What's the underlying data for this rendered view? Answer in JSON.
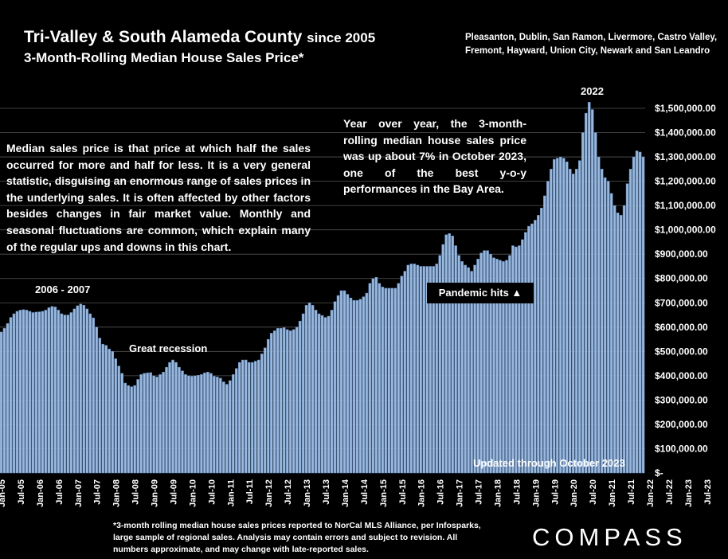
{
  "header": {
    "title": "Tri-Valley & South Alameda County",
    "title_suffix": "since 2005",
    "subtitle": "3-Month-Rolling Median House Sales Price*",
    "cities": "Pleasanton, Dublin, San Ramon, Livermore, Castro Valley, Fremont, Hayward, Union City, Newark and San Leandro"
  },
  "notes": {
    "left": "Median sales price is that price at which half the sales occurred for more and half for less. It is a very general statistic, disguising an enormous range of sales prices in the underlying sales. It is often affected by other factors besides changes in fair market value. Monthly and seasonal fluctuations are common, which explain many of the regular ups and downs in this chart.",
    "right": "Year over year, the 3-month-rolling median house sales price was up about 7% in October 2023, one of the best y-o-y performances in the Bay Area."
  },
  "annotations": {
    "label_2006": "2006 - 2007",
    "label_recession": "Great recession",
    "label_2022": "2022",
    "label_pandemic": "Pandemic hits ▲",
    "label_updated": "Updated through October 2023"
  },
  "footnote": "*3-month rolling median house sales prices reported to NorCal MLS Alliance, per Infosparks, large sample of regional sales. Analysis may contain errors and subject to revision. All numbers approximate, and may change with late-reported sales.",
  "logo": "COMPASS",
  "colors": {
    "bar": "#9ab8dd",
    "bar_edge": "#5f86b8",
    "background": "#000000",
    "grid": "#555555"
  },
  "chart_data": {
    "type": "bar",
    "ylim": [
      0,
      1500000
    ],
    "yticks": [
      0,
      100000,
      200000,
      300000,
      400000,
      500000,
      600000,
      700000,
      800000,
      900000,
      1000000,
      1100000,
      1200000,
      1300000,
      1400000,
      1500000
    ],
    "ytick_labels": [
      "$-",
      "$100,000.00",
      "$200,000.00",
      "$300,000.00",
      "$400,000.00",
      "$500,000.00",
      "$600,000.00",
      "$700,000.00",
      "$800,000.00",
      "$900,000.00",
      "$1,000,000.00",
      "$1,100,000.00",
      "$1,200,000.00",
      "$1,300,000.00",
      "$1,400,000.00",
      "$1,500,000.00"
    ],
    "xtick_labels": [
      "Jan-05",
      "Jul-05",
      "Jan-06",
      "Jul-06",
      "Jan-07",
      "Jul-07",
      "Jan-08",
      "Jul-08",
      "Jan-09",
      "Jul-09",
      "Jan-10",
      "Jul-10",
      "Jan-11",
      "Jul-11",
      "Jan-12",
      "Jul-12",
      "Jan-13",
      "Jul-13",
      "Jan-14",
      "Jul-14",
      "Jan-15",
      "Jul-15",
      "Jan-16",
      "Jul-16",
      "Jan-17",
      "Jul-17",
      "Jan-18",
      "Jul-18",
      "Jan-19",
      "Jul-19",
      "Jan-20",
      "Jul-20",
      "Jan-21",
      "Jul-21",
      "Jan-22",
      "Jul-22",
      "Jan-23",
      "Jul-23"
    ],
    "grid": true,
    "values": [
      580000,
      595000,
      615000,
      640000,
      655000,
      665000,
      670000,
      672000,
      670000,
      665000,
      660000,
      662000,
      663000,
      665000,
      670000,
      680000,
      685000,
      683000,
      670000,
      655000,
      650000,
      650000,
      660000,
      675000,
      688000,
      695000,
      690000,
      675000,
      655000,
      638000,
      600000,
      555000,
      530000,
      525000,
      510000,
      500000,
      470000,
      440000,
      410000,
      370000,
      360000,
      355000,
      360000,
      385000,
      405000,
      410000,
      412000,
      413000,
      400000,
      395000,
      405000,
      415000,
      435000,
      455000,
      465000,
      455000,
      435000,
      420000,
      405000,
      400000,
      398000,
      400000,
      402000,
      405000,
      412000,
      415000,
      410000,
      398000,
      395000,
      390000,
      375000,
      365000,
      380000,
      405000,
      430000,
      455000,
      465000,
      465000,
      455000,
      455000,
      460000,
      465000,
      490000,
      515000,
      550000,
      575000,
      585000,
      595000,
      595000,
      598000,
      590000,
      585000,
      590000,
      600000,
      625000,
      655000,
      690000,
      700000,
      690000,
      670000,
      655000,
      648000,
      640000,
      645000,
      670000,
      705000,
      730000,
      750000,
      750000,
      735000,
      720000,
      710000,
      710000,
      715000,
      725000,
      740000,
      780000,
      800000,
      805000,
      780000,
      765000,
      760000,
      760000,
      760000,
      760000,
      780000,
      810000,
      830000,
      855000,
      860000,
      860000,
      855000,
      850000,
      850000,
      850000,
      850000,
      850000,
      860000,
      895000,
      940000,
      980000,
      985000,
      975000,
      935000,
      895000,
      870000,
      855000,
      845000,
      830000,
      855000,
      880000,
      905000,
      915000,
      915000,
      900000,
      885000,
      880000,
      875000,
      870000,
      875000,
      895000,
      935000,
      930000,
      935000,
      960000,
      990000,
      1015000,
      1025000,
      1040000,
      1060000,
      1090000,
      1140000,
      1200000,
      1250000,
      1290000,
      1295000,
      1300000,
      1295000,
      1280000,
      1250000,
      1230000,
      1250000,
      1285000,
      1400000,
      1480000,
      1525000,
      1495000,
      1400000,
      1300000,
      1250000,
      1215000,
      1200000,
      1150000,
      1100000,
      1070000,
      1060000,
      1100000,
      1190000,
      1250000,
      1300000,
      1325000,
      1320000,
      1300000
    ]
  }
}
